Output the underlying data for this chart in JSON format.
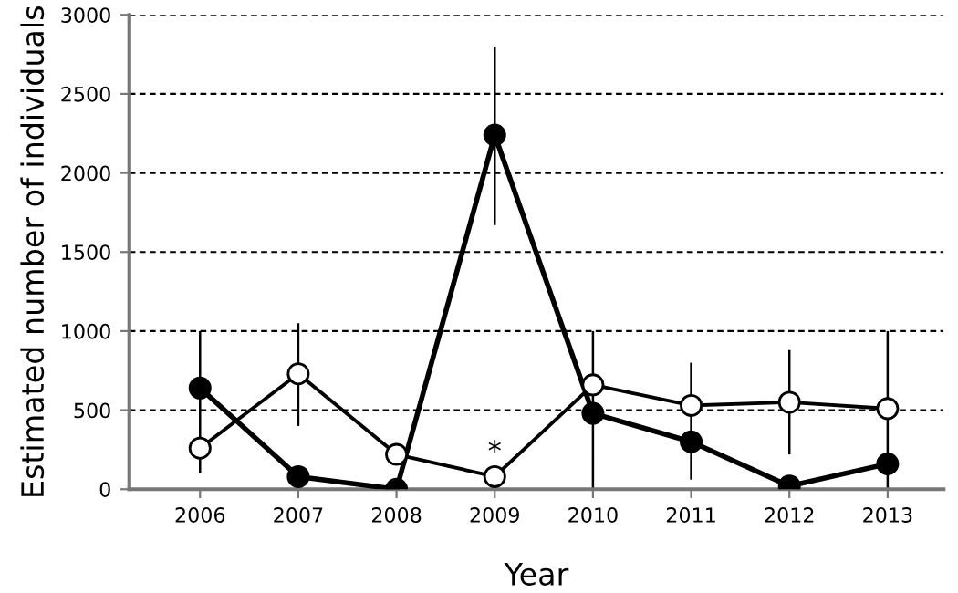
{
  "chart_data": {
    "type": "line",
    "xlabel": "Year",
    "ylabel": "Estimated number of individuals",
    "categories": [
      "2006",
      "2007",
      "2008",
      "2009",
      "2010",
      "2011",
      "2012",
      "2013"
    ],
    "series": [
      {
        "color": "#000000",
        "values": [
          640,
          80,
          0,
          2240,
          480,
          300,
          20,
          160
        ],
        "errors": [
          null,
          null,
          null,
          [
            1670,
            2800
          ],
          null,
          null,
          null,
          null
        ]
      },
      {
        "color": "#000000",
        "values": [
          260,
          730,
          220,
          80,
          660,
          530,
          550,
          510
        ],
        "errors": [
          [
            100,
            1000
          ],
          [
            400,
            1050
          ],
          null,
          null,
          [
            0,
            1000
          ],
          [
            60,
            800
          ],
          [
            220,
            880
          ],
          [
            0,
            1000
          ]
        ]
      }
    ],
    "ylim": [
      0,
      3000
    ],
    "yticks": [
      0,
      500,
      1000,
      1500,
      2000,
      2500,
      3000
    ],
    "grid": "y",
    "marker": "circle",
    "line_style": "solid",
    "annotations": [
      "*"
    ]
  }
}
